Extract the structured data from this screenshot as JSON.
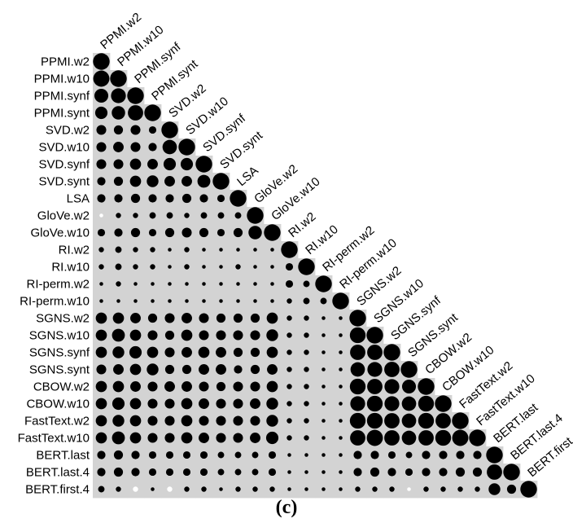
{
  "caption": "(c)",
  "chart_data": {
    "type": "heatmap",
    "style": "lower-triangular correlation plot with circle size proportional to value",
    "grid": "grey cells below and on the diagonal",
    "labels": [
      "PPMI.w2",
      "PPMI.w10",
      "PPMI.synf",
      "PPMI.synt",
      "SVD.w2",
      "SVD.w10",
      "SVD.synf",
      "SVD.synt",
      "LSA",
      "GloVe.w2",
      "GloVe.w10",
      "RI.w2",
      "RI.w10",
      "RI-perm.w2",
      "RI-perm.w10",
      "SGNS.w2",
      "SGNS.w10",
      "SGNS.synf",
      "SGNS.synt",
      "CBOW.w2",
      "CBOW.w10",
      "FastText.w2",
      "FastText.w10",
      "BERT.last",
      "BERT.last.4",
      "BERT.first.4"
    ],
    "value_range": [
      -1,
      1
    ],
    "colors": {
      "positive": "#000000",
      "negative": "#ffffff",
      "background": "#d3d3d3"
    },
    "matrix": [
      [
        1.0
      ],
      [
        0.95,
        1.0
      ],
      [
        0.7,
        0.8,
        1.0
      ],
      [
        0.55,
        0.65,
        0.85,
        1.0
      ],
      [
        0.35,
        0.3,
        0.35,
        0.2,
        1.0
      ],
      [
        0.35,
        0.4,
        0.35,
        0.25,
        0.75,
        1.0
      ],
      [
        0.35,
        0.35,
        0.45,
        0.4,
        0.55,
        0.55,
        1.0
      ],
      [
        0.25,
        0.3,
        0.45,
        0.5,
        0.4,
        0.4,
        0.6,
        1.0
      ],
      [
        0.25,
        0.25,
        0.3,
        0.25,
        0.25,
        0.3,
        0.25,
        0.2,
        1.0
      ],
      [
        -0.05,
        0.1,
        0.1,
        0.15,
        0.15,
        0.1,
        0.15,
        0.15,
        0.15,
        1.0
      ],
      [
        0.2,
        0.25,
        0.3,
        0.2,
        0.3,
        0.35,
        0.3,
        0.2,
        0.3,
        0.65,
        1.0
      ],
      [
        0.1,
        0.15,
        0.1,
        0.1,
        0.05,
        0.1,
        0.05,
        0.05,
        0.05,
        0.05,
        0.05,
        1.0
      ],
      [
        0.1,
        0.15,
        0.1,
        0.1,
        0.05,
        0.1,
        0.05,
        0.05,
        0.1,
        0.05,
        0.05,
        0.2,
        1.0
      ],
      [
        0.05,
        0.1,
        0.05,
        0.05,
        0.05,
        0.05,
        0.05,
        0.05,
        0.05,
        0.05,
        0.05,
        0.2,
        0.15,
        1.0
      ],
      [
        0.05,
        0.05,
        0.05,
        0.05,
        0.05,
        0.05,
        0.05,
        0.05,
        0.05,
        0.05,
        0.05,
        0.1,
        0.15,
        0.15,
        1.0
      ],
      [
        0.45,
        0.45,
        0.4,
        0.3,
        0.35,
        0.4,
        0.35,
        0.3,
        0.3,
        0.3,
        0.45,
        0.1,
        0.1,
        0.05,
        0.05,
        1.0
      ],
      [
        0.45,
        0.6,
        0.45,
        0.35,
        0.3,
        0.45,
        0.35,
        0.35,
        0.35,
        0.35,
        0.5,
        0.1,
        0.1,
        0.05,
        0.05,
        0.9,
        1.0
      ],
      [
        0.45,
        0.5,
        0.55,
        0.45,
        0.35,
        0.4,
        0.45,
        0.4,
        0.3,
        0.3,
        0.45,
        0.1,
        0.1,
        0.05,
        0.05,
        0.85,
        0.85,
        1.0
      ],
      [
        0.35,
        0.4,
        0.45,
        0.5,
        0.3,
        0.3,
        0.4,
        0.4,
        0.25,
        0.3,
        0.4,
        0.1,
        0.1,
        0.05,
        0.05,
        0.75,
        0.8,
        0.85,
        1.0
      ],
      [
        0.45,
        0.45,
        0.4,
        0.35,
        0.4,
        0.4,
        0.35,
        0.3,
        0.35,
        0.35,
        0.45,
        0.1,
        0.1,
        0.05,
        0.05,
        0.9,
        0.85,
        0.8,
        0.7,
        1.0
      ],
      [
        0.45,
        0.55,
        0.45,
        0.35,
        0.35,
        0.45,
        0.4,
        0.35,
        0.35,
        0.4,
        0.5,
        0.1,
        0.1,
        0.05,
        0.05,
        0.8,
        0.9,
        0.8,
        0.75,
        0.9,
        1.0
      ],
      [
        0.45,
        0.5,
        0.45,
        0.35,
        0.35,
        0.45,
        0.35,
        0.35,
        0.35,
        0.35,
        0.5,
        0.1,
        0.1,
        0.05,
        0.05,
        0.9,
        0.9,
        0.85,
        0.75,
        0.9,
        0.85,
        1.0
      ],
      [
        0.45,
        0.6,
        0.45,
        0.35,
        0.35,
        0.45,
        0.4,
        0.35,
        0.35,
        0.4,
        0.55,
        0.1,
        0.1,
        0.05,
        0.05,
        0.85,
        0.95,
        0.85,
        0.75,
        0.85,
        0.9,
        0.95,
        1.0
      ],
      [
        0.25,
        0.3,
        0.25,
        0.2,
        0.2,
        0.2,
        0.2,
        0.15,
        0.15,
        0.15,
        0.2,
        0.05,
        0.05,
        0.05,
        0.05,
        0.25,
        0.25,
        0.2,
        0.15,
        0.25,
        0.25,
        0.25,
        0.25,
        1.0
      ],
      [
        0.25,
        0.3,
        0.25,
        0.2,
        0.2,
        0.2,
        0.2,
        0.15,
        0.15,
        0.15,
        0.2,
        0.05,
        0.05,
        0.05,
        0.05,
        0.25,
        0.3,
        0.25,
        0.2,
        0.25,
        0.25,
        0.3,
        0.3,
        0.85,
        1.0
      ],
      [
        0.15,
        0.1,
        -0.1,
        0.05,
        -0.1,
        0.1,
        0.1,
        0.05,
        0.1,
        0.1,
        0.1,
        0.05,
        0.05,
        0.05,
        0.05,
        0.1,
        0.1,
        0.1,
        -0.05,
        0.1,
        0.1,
        0.1,
        0.1,
        0.5,
        0.3,
        1.0
      ]
    ]
  }
}
